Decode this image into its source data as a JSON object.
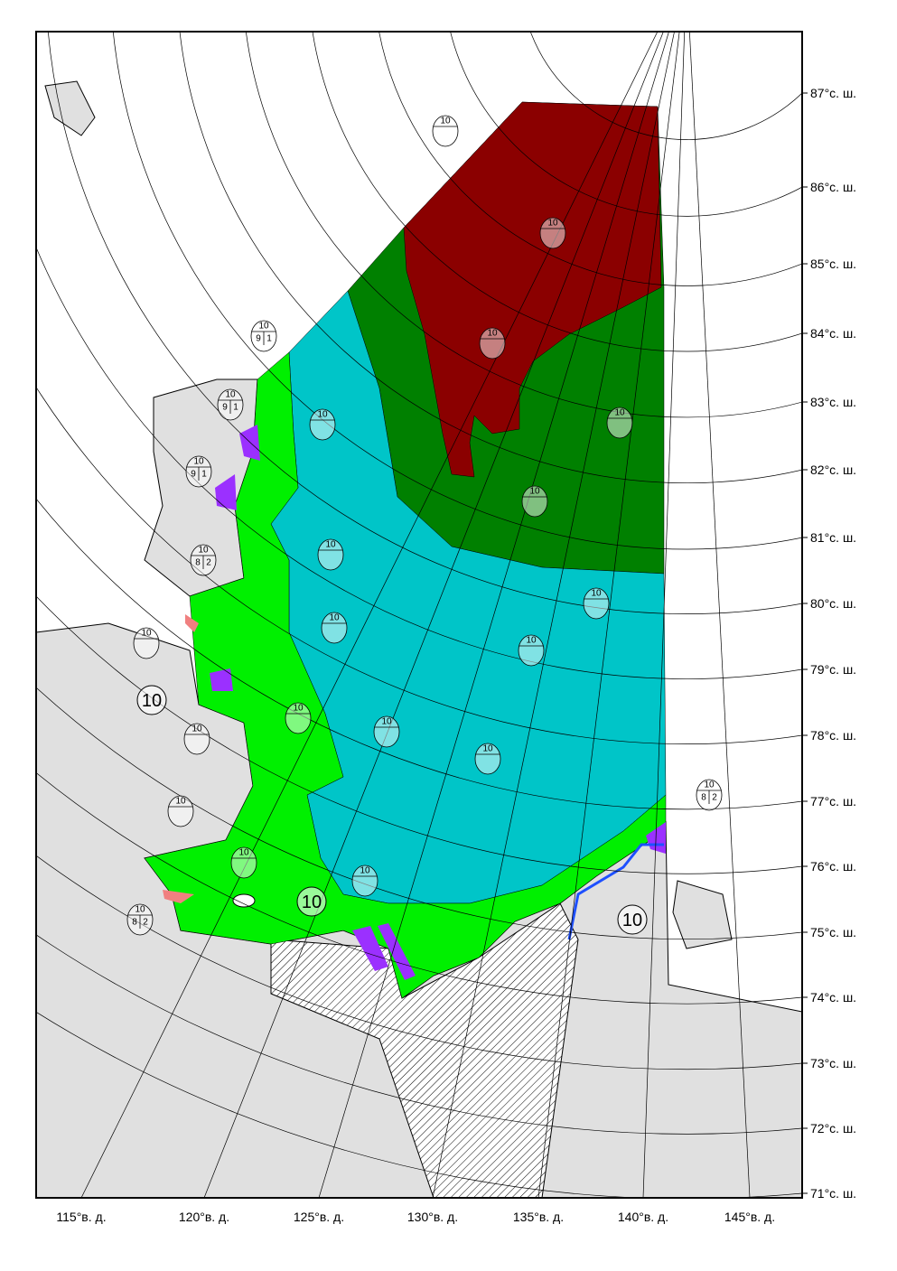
{
  "map": {
    "latitude_labels": [
      "87°с. ш.",
      "86°с. ш.",
      "85°с. ш.",
      "84°с. ш.",
      "83°с. ш.",
      "82°с. ш.",
      "81°с. ш.",
      "80°с. ш.",
      "79°с. ш.",
      "78°с. ш.",
      "77°с. ш.",
      "76°с. ш.",
      "75°с. ш.",
      "74°с. ш.",
      "73°с. ш.",
      "72°с. ш.",
      "71°с. ш."
    ],
    "longitude_labels": [
      "115°в. д.",
      "120°в. д.",
      "125°в. д.",
      "130°в. д.",
      "135°в. д.",
      "140°в. д.",
      "145°в. д."
    ],
    "big_labels": [
      "10",
      "10",
      "10"
    ],
    "eggs": [
      {
        "total": "10",
        "partials": [
          "9",
          "1"
        ]
      },
      {
        "total": "10",
        "partials": [
          "9",
          "1"
        ]
      },
      {
        "total": "10",
        "partials": [
          "9",
          "1"
        ]
      },
      {
        "total": "10",
        "partials": [
          "8",
          "2"
        ]
      },
      {
        "total": "10",
        "partials": [
          "8",
          "2"
        ]
      },
      {
        "total": "10",
        "partials": [
          "8",
          "2"
        ]
      },
      {
        "total": "10",
        "partials": []
      },
      {
        "total": "10",
        "partials": []
      },
      {
        "total": "10",
        "partials": []
      },
      {
        "total": "10",
        "partials": []
      },
      {
        "total": "10",
        "partials": []
      },
      {
        "total": "10",
        "partials": []
      },
      {
        "total": "10",
        "partials": []
      },
      {
        "total": "10",
        "partials": []
      },
      {
        "total": "10",
        "partials": []
      },
      {
        "total": "10",
        "partials": []
      },
      {
        "total": "10",
        "partials": []
      },
      {
        "total": "10",
        "partials": []
      },
      {
        "total": "10",
        "partials": []
      },
      {
        "total": "10",
        "partials": []
      },
      {
        "total": "10",
        "partials": []
      },
      {
        "total": "10",
        "partials": []
      },
      {
        "total": "10",
        "partials": []
      },
      {
        "total": "10",
        "partials": []
      }
    ]
  }
}
